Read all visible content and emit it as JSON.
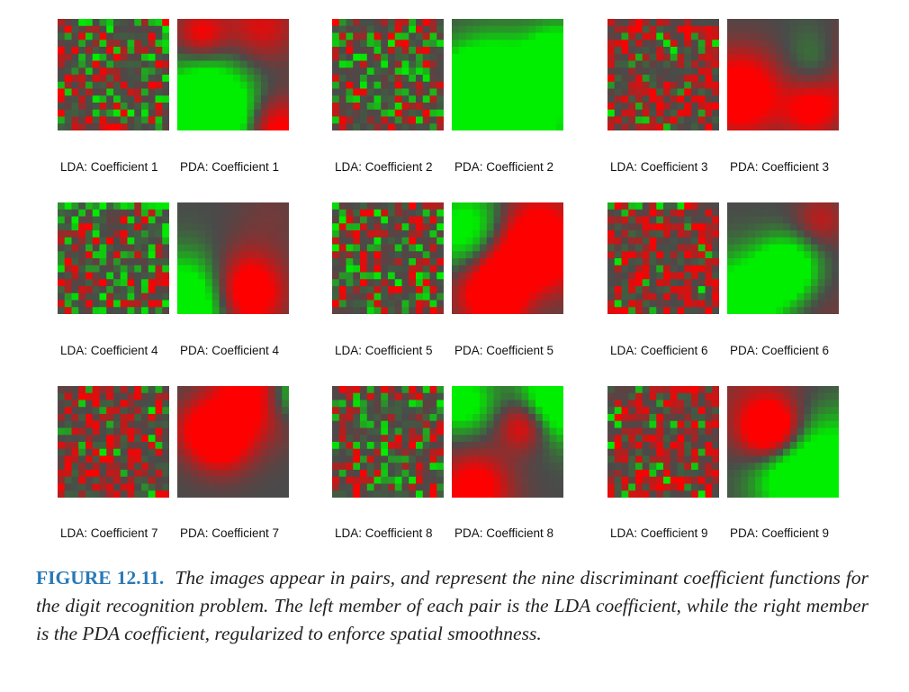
{
  "figure": {
    "pairs": [
      {
        "lda_label": "LDA: Coefficient 1",
        "pda_label": "PDA: Coefficient 1"
      },
      {
        "lda_label": "LDA: Coefficient 2",
        "pda_label": "PDA: Coefficient 2"
      },
      {
        "lda_label": "LDA: Coefficient 3",
        "pda_label": "PDA: Coefficient 3"
      },
      {
        "lda_label": "LDA: Coefficient 4",
        "pda_label": "PDA: Coefficient 4"
      },
      {
        "lda_label": "LDA: Coefficient 5",
        "pda_label": "PDA: Coefficient 5"
      },
      {
        "lda_label": "LDA: Coefficient 6",
        "pda_label": "PDA: Coefficient 6"
      },
      {
        "lda_label": "LDA: Coefficient 7",
        "pda_label": "PDA: Coefficient 7"
      },
      {
        "lda_label": "LDA: Coefficient 8",
        "pda_label": "PDA: Coefficient 8"
      },
      {
        "lda_label": "LDA: Coefficient 9",
        "pda_label": "PDA: Coefficient 9"
      }
    ],
    "colors": {
      "positive": "#ff0000",
      "neutral": "#4a4a4a",
      "negative": "#00ee00",
      "caption_label": "#2a79b6"
    }
  },
  "caption": {
    "figure_label": "FIGURE 12.11.",
    "text": "The images appear in pairs, and represent the nine discriminant coefficient functions for the digit recognition problem. The left member of each pair is the LDA coefficient, while the right member is the PDA coefficient, regularized to enforce spatial smoothness."
  }
}
